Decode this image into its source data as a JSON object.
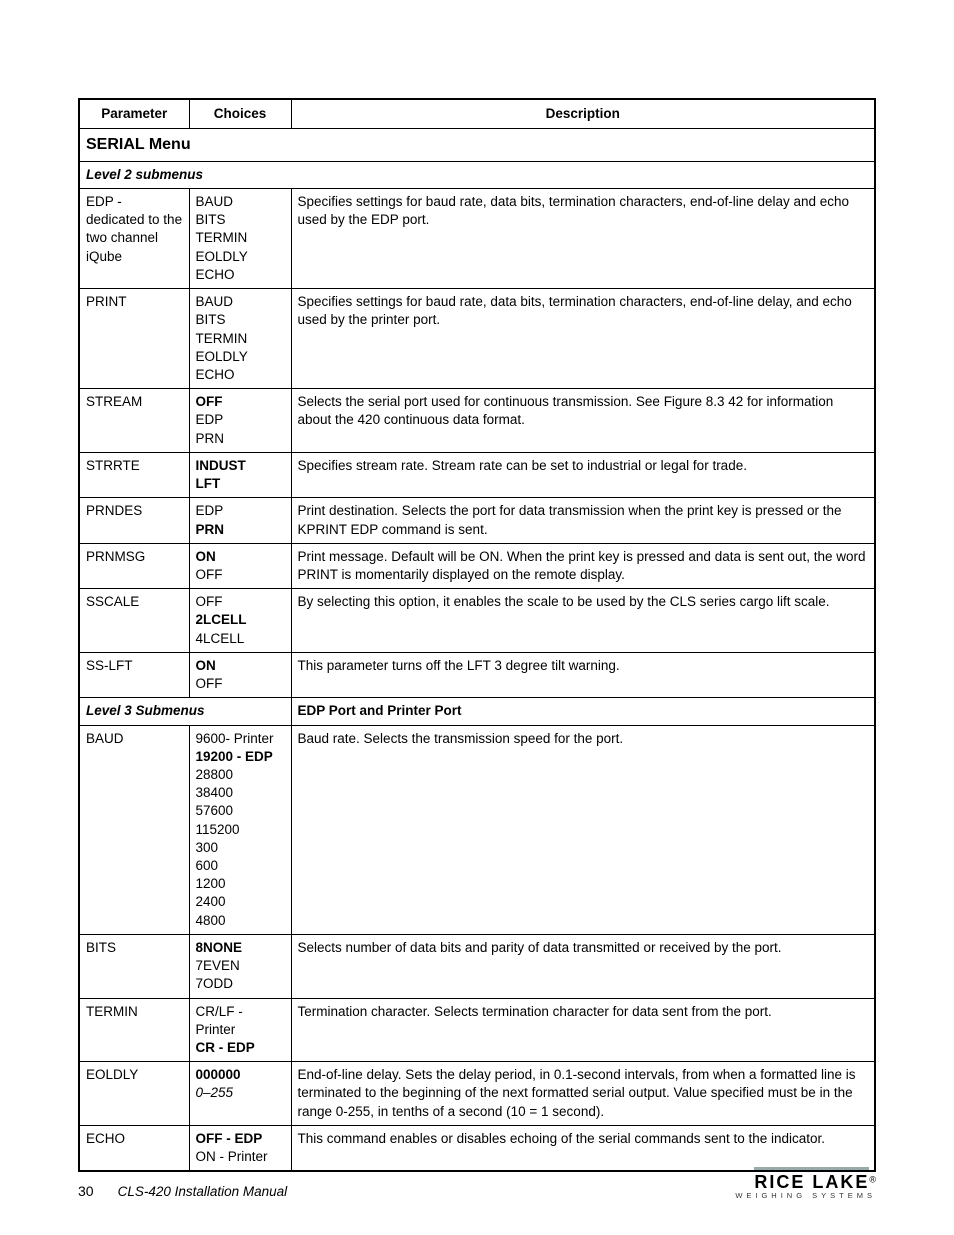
{
  "table": {
    "title": "SERIAL Menu",
    "headers": {
      "parameter": "Parameter",
      "choices": "Choices",
      "description": "Description"
    },
    "level2_label": "Level 2 submenus",
    "level3_label": "Level 3 Submenus",
    "level3_desc": "EDP Port and Printer Port",
    "rows_l2": [
      {
        "param": "EDP - dedicated to the two channel iQube",
        "choices": [
          {
            "t": "BAUD"
          },
          {
            "t": "BITS"
          },
          {
            "t": "TERMIN"
          },
          {
            "t": "EOLDLY"
          },
          {
            "t": "ECHO"
          }
        ],
        "desc": "Specifies settings for baud rate, data bits, termination characters, end-of-line delay and echo used by the EDP port."
      },
      {
        "param": "PRINT",
        "choices": [
          {
            "t": "BAUD"
          },
          {
            "t": "BITS"
          },
          {
            "t": "TERMIN"
          },
          {
            "t": "EOLDLY"
          },
          {
            "t": "ECHO"
          }
        ],
        "desc": "Specifies settings for baud rate, data bits, termination characters, end-of-line delay, and echo used by the printer port."
      },
      {
        "param": "STREAM",
        "choices": [
          {
            "t": "OFF",
            "b": true
          },
          {
            "t": "EDP"
          },
          {
            "t": "PRN"
          }
        ],
        "desc": "Selects the serial port used for continuous transmission. See Figure 8.3  42 for information about the 420 continuous data format.",
        "justify": true
      },
      {
        "param": "STRRTE",
        "choices": [
          {
            "t": "INDUST",
            "b": true
          },
          {
            "t": "LFT",
            "b": true
          }
        ],
        "desc": "Specifies stream rate. Stream rate can be set to industrial or legal for trade."
      },
      {
        "param": "PRNDES",
        "choices": [
          {
            "t": "EDP"
          },
          {
            "t": "PRN",
            "b": true
          }
        ],
        "desc": "Print destination. Selects the port for data transmission when the print key is pressed or the KPRINT EDP command is sent.",
        "justify": true
      },
      {
        "param": "PRNMSG",
        "choices": [
          {
            "t": "ON",
            "b": true
          },
          {
            "t": "OFF"
          }
        ],
        "desc": "Print message. Default will be ON. When the print key is pressed and data is sent out, the word PRINT is momentarily displayed on the remote display.",
        "justify": true
      },
      {
        "param": "SSCALE",
        "choices": [
          {
            "t": "OFF"
          },
          {
            "t": "2LCELL",
            "b": true
          },
          {
            "t": "4LCELL"
          }
        ],
        "desc": "By selecting this option, it enables the scale to be used by the CLS series cargo lift scale."
      },
      {
        "param": "SS-LFT",
        "choices": [
          {
            "t": "ON",
            "b": true
          },
          {
            "t": "OFF"
          }
        ],
        "desc": "This parameter turns off the LFT 3 degree tilt warning."
      }
    ],
    "rows_l3": [
      {
        "param": "BAUD",
        "choices": [
          {
            "t": "9600- Printer"
          },
          {
            "t": "19200 - EDP",
            "b": true
          },
          {
            "t": "28800"
          },
          {
            "t": "38400"
          },
          {
            "t": "57600"
          },
          {
            "t": "115200"
          },
          {
            "t": "300"
          },
          {
            "t": "600"
          },
          {
            "t": "1200"
          },
          {
            "t": "2400"
          },
          {
            "t": "4800"
          }
        ],
        "desc": "Baud rate. Selects the transmission speed for the port."
      },
      {
        "param": "BITS",
        "choices": [
          {
            "t": "8NONE",
            "b": true
          },
          {
            "t": "7EVEN"
          },
          {
            "t": "7ODD"
          }
        ],
        "desc": "Selects number of data bits and parity of data transmitted or received by the port."
      },
      {
        "param": "TERMIN",
        "choices": [
          {
            "t": "CR/LF - Printer"
          },
          {
            "t": "CR - EDP",
            "b": true
          }
        ],
        "desc": "Termination character. Selects termination character for data sent from the port."
      },
      {
        "param": "EOLDLY",
        "choices": [
          {
            "t": "000000",
            "b": true
          },
          {
            "t": "0–255",
            "i": true
          }
        ],
        "desc": "End-of-line delay. Sets the delay period, in 0.1-second intervals, from when a formatted line is terminated to the beginning of the next formatted serial output. Value specified must be in the range 0-255, in tenths of a second (10 = 1 second).",
        "justify": true
      },
      {
        "param": "ECHO",
        "choices": [
          {
            "t": "OFF - EDP",
            "b": true
          },
          {
            "t": "ON - Printer"
          }
        ],
        "desc": "This command enables or disables echoing of the serial commands sent to the indicator."
      }
    ]
  },
  "footer": {
    "page": "30",
    "title": "CLS-420 Installation Manual",
    "logo_main": "RICE LAKE",
    "logo_sub": "WEIGHING SYSTEMS"
  }
}
